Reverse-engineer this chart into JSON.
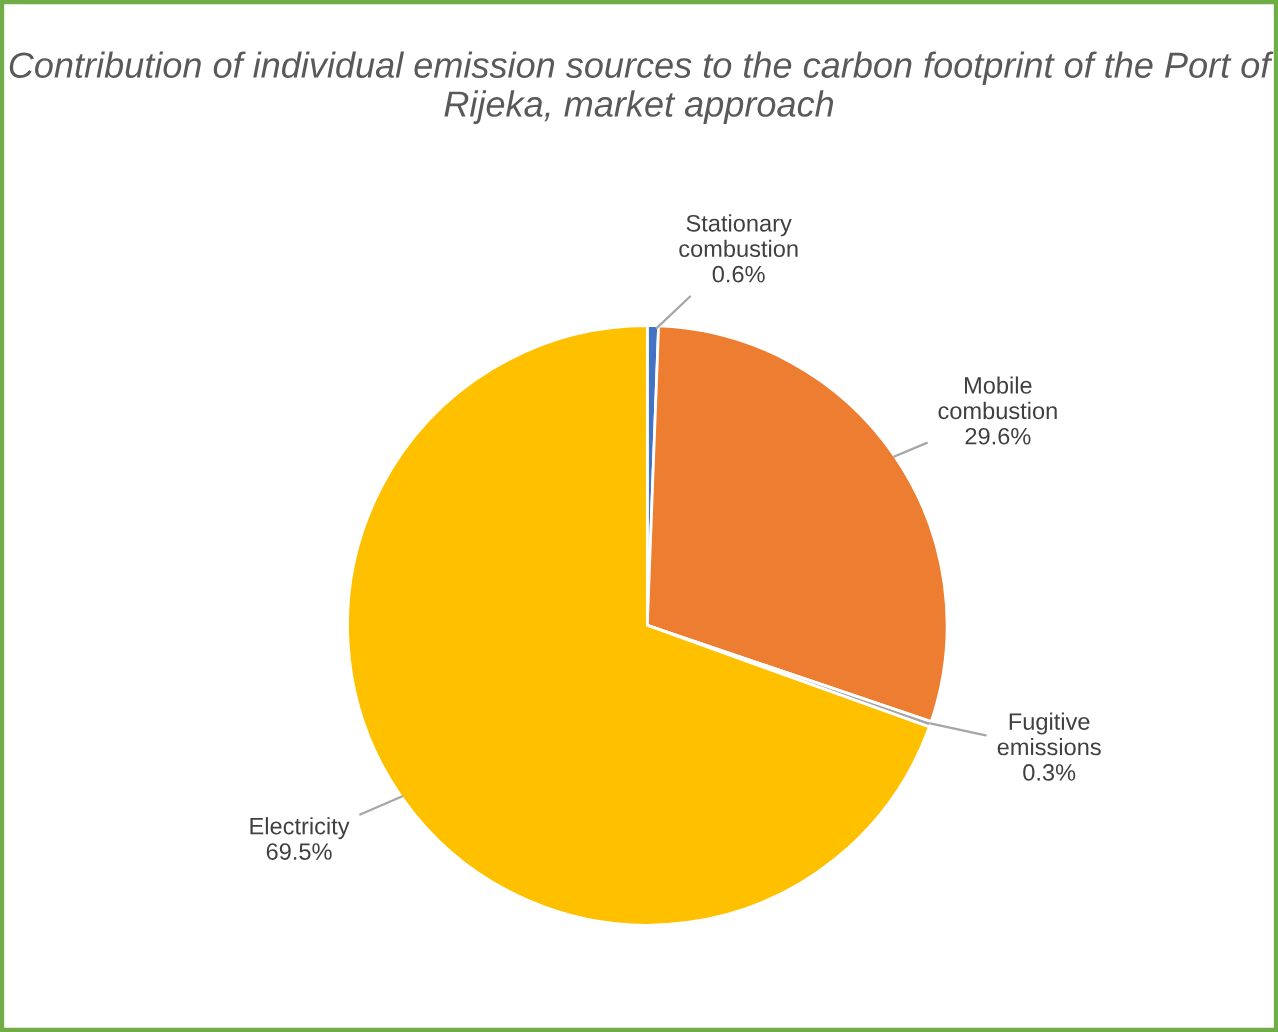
{
  "chart_data": {
    "type": "pie",
    "title": "Contribution of individual emission sources to the carbon footprint of the Port of Rijeka, market approach",
    "categories": [
      "Stationary combustion",
      "Mobile combustion",
      "Fugitive emissions",
      "Electricity"
    ],
    "values": [
      0.6,
      29.6,
      0.3,
      69.5
    ],
    "value_labels": [
      "0.6%",
      "29.6%",
      "0.3%",
      "69.5%"
    ],
    "colors": [
      "#4472c4",
      "#ed7d31",
      "#a5a5a5",
      "#ffc000"
    ],
    "legend": false
  }
}
